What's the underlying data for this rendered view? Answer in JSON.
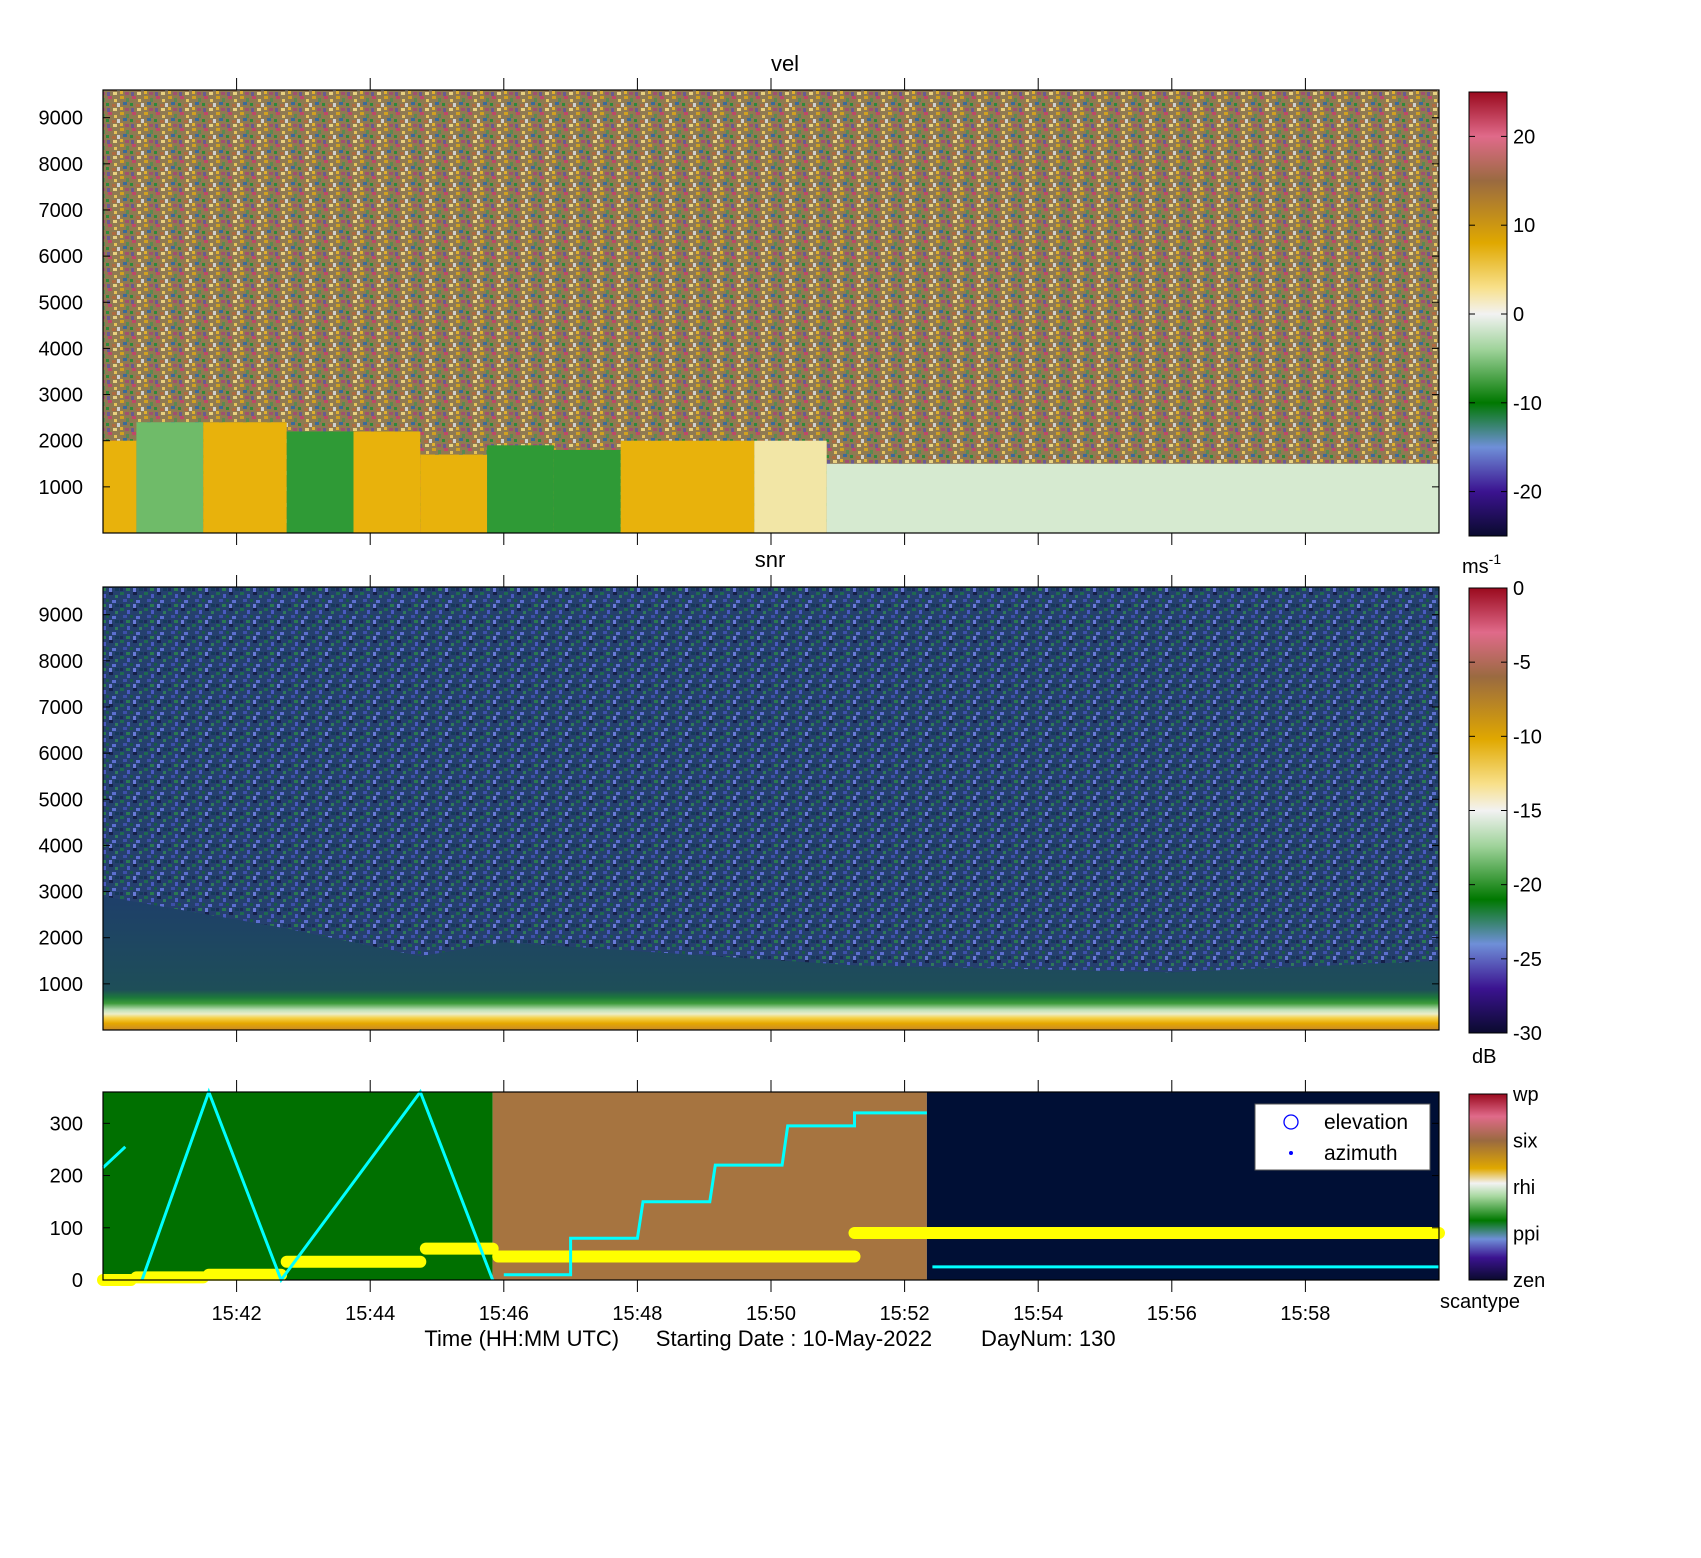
{
  "chart_data": [
    {
      "type": "heatmap",
      "title": "vel",
      "yticks": [
        1000,
        2000,
        3000,
        4000,
        5000,
        6000,
        7000,
        8000,
        9000
      ],
      "ylim": [
        0,
        9600
      ],
      "colorbar": {
        "range": [
          -25,
          25
        ],
        "ticks": [
          20,
          10,
          0,
          -10,
          -20
        ],
        "unit_base": "ms",
        "unit_exp": "-1"
      },
      "segments": [
        {
          "start": "15:40:00",
          "end": "15:40:30",
          "below_m": 2000,
          "mean": 6
        },
        {
          "start": "15:40:30",
          "end": "15:41:30",
          "below_m": 2400,
          "mean": -6
        },
        {
          "start": "15:41:30",
          "end": "15:42:45",
          "below_m": 2400,
          "mean": 6
        },
        {
          "start": "15:42:45",
          "end": "15:43:45",
          "below_m": 2200,
          "mean": -9
        },
        {
          "start": "15:43:45",
          "end": "15:44:45",
          "below_m": 2200,
          "mean": 6
        },
        {
          "start": "15:44:45",
          "end": "15:45:45",
          "below_m": 1700,
          "mean": 6
        },
        {
          "start": "15:45:45",
          "end": "15:46:45",
          "below_m": 1900,
          "mean": -8
        },
        {
          "start": "15:46:45",
          "end": "15:47:45",
          "below_m": 1800,
          "mean": -8
        },
        {
          "start": "15:47:45",
          "end": "15:48:45",
          "below_m": 2000,
          "mean": 4
        },
        {
          "start": "15:48:45",
          "end": "15:49:45",
          "below_m": 2000,
          "mean": 6
        },
        {
          "start": "15:49:45",
          "end": "15:50:50",
          "below_m": 2000,
          "mean": 2
        },
        {
          "start": "15:50:50",
          "end": "16:00:00",
          "below_m": 1500,
          "mean": -3
        }
      ]
    },
    {
      "type": "heatmap",
      "title": "snr",
      "yticks": [
        1000,
        2000,
        3000,
        4000,
        5000,
        6000,
        7000,
        8000,
        9000
      ],
      "ylim": [
        0,
        9600
      ],
      "colorbar": {
        "range": [
          -30,
          0
        ],
        "ticks": [
          0,
          -5,
          -10,
          -15,
          -20,
          -25,
          -30
        ],
        "unit": "dB"
      },
      "boundary_layer_top_m": [
        {
          "time": "15:40:00",
          "value": 2900
        },
        {
          "time": "15:42:45",
          "value": 2200
        },
        {
          "time": "15:44:45",
          "value": 1600
        },
        {
          "time": "15:46:00",
          "value": 1900
        },
        {
          "time": "15:51:15",
          "value": 1400
        },
        {
          "time": "15:56:00",
          "value": 1250
        },
        {
          "time": "16:00:00",
          "value": 1500
        }
      ]
    },
    {
      "type": "line",
      "yticks": [
        0,
        100,
        200,
        300
      ],
      "ylim": [
        0,
        360
      ],
      "scantype_colorbar": {
        "labels": [
          "wp",
          "six",
          "rhi",
          "ppi",
          "zen"
        ],
        "unit": "scantype"
      },
      "scantype_blocks": [
        {
          "start": "15:40:00",
          "end": "15:45:50",
          "type": "ppi",
          "color": "#007000"
        },
        {
          "start": "15:45:50",
          "end": "15:52:20",
          "type": "six",
          "color": "#a67440"
        },
        {
          "start": "15:52:20",
          "end": "16:00:00",
          "type": "zen",
          "color": "#000f35"
        }
      ],
      "legend": [
        "elevation",
        "azimuth"
      ],
      "series": [
        {
          "name": "elevation",
          "color": "#ffff00",
          "segments": [
            {
              "start": "15:40:00",
              "end": "15:40:25",
              "value": 0
            },
            {
              "start": "15:40:30",
              "end": "15:41:30",
              "value": 5
            },
            {
              "start": "15:41:35",
              "end": "15:42:40",
              "value": 10
            },
            {
              "start": "15:42:45",
              "end": "15:44:45",
              "value": 35
            },
            {
              "start": "15:44:50",
              "end": "15:45:50",
              "value": 60
            },
            {
              "start": "15:45:55",
              "end": "15:51:15",
              "value": 45
            },
            {
              "start": "15:51:15",
              "end": "16:00:00",
              "value": 90
            }
          ]
        },
        {
          "name": "azimuth",
          "color": "#00ffff",
          "points": [
            {
              "time": "15:40:00",
              "value": 215
            },
            {
              "time": "15:40:20",
              "value": 255
            },
            {
              "time": "15:40:30",
              "value": null
            },
            {
              "time": "15:40:35",
              "value": 0
            },
            {
              "time": "15:41:35",
              "value": 360
            },
            {
              "time": "15:42:40",
              "value": 0
            },
            {
              "time": "15:44:45",
              "value": 360
            },
            {
              "time": "15:45:50",
              "value": 0
            },
            {
              "time": "15:46:00",
              "value": null
            },
            {
              "time": "15:46:00",
              "value": 10
            },
            {
              "time": "15:47:00",
              "value": 10
            },
            {
              "time": "15:47:00",
              "value": 80
            },
            {
              "time": "15:48:00",
              "value": 80
            },
            {
              "time": "15:48:05",
              "value": 150
            },
            {
              "time": "15:49:05",
              "value": 150
            },
            {
              "time": "15:49:10",
              "value": 220
            },
            {
              "time": "15:50:10",
              "value": 220
            },
            {
              "time": "15:50:15",
              "value": 295
            },
            {
              "time": "15:51:15",
              "value": 295
            },
            {
              "time": "15:51:15",
              "value": 320
            },
            {
              "time": "15:52:20",
              "value": 320
            },
            {
              "time": "15:52:25",
              "value": null
            },
            {
              "time": "15:52:25",
              "value": 25
            },
            {
              "time": "16:00:00",
              "value": 25
            }
          ]
        }
      ]
    }
  ],
  "xaxis": {
    "start": "15:40:00",
    "end": "16:00:00",
    "ticks": [
      "15:42",
      "15:44",
      "15:46",
      "15:48",
      "15:50",
      "15:52",
      "15:54",
      "15:56",
      "15:58"
    ]
  },
  "xlabel": "Time (HH:MM UTC)      Starting Date : 10-May-2022        DayNum: 130"
}
